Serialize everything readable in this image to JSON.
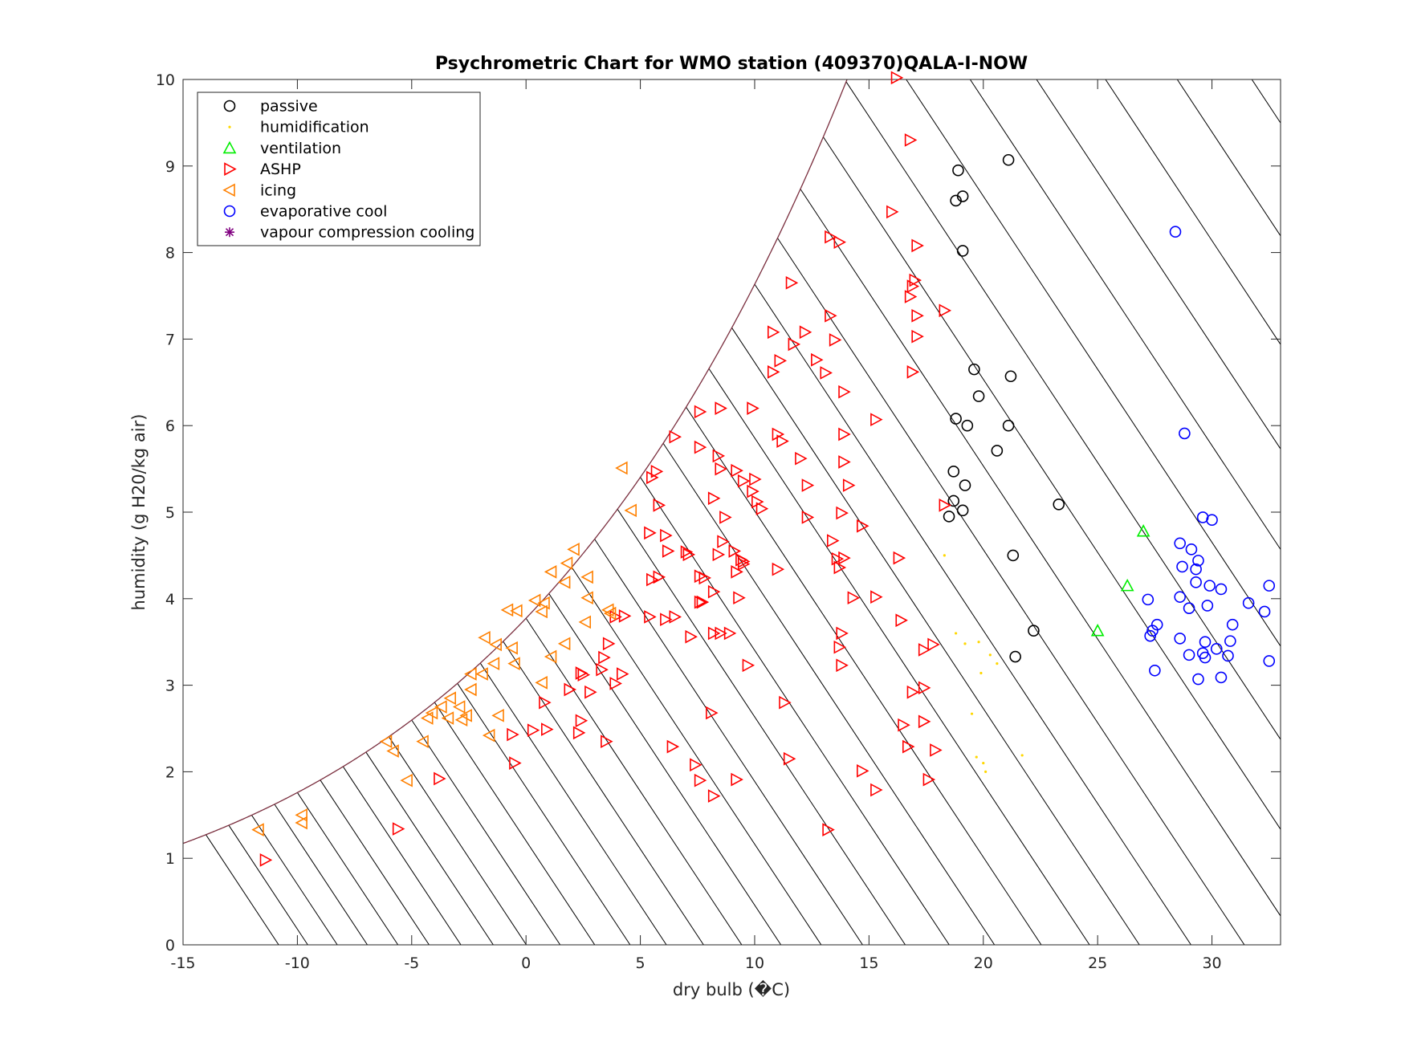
{
  "chart_data": {
    "type": "scatter",
    "title": "Psychrometric Chart for WMO station (409370)QALA-I-NOW",
    "xlabel": "dry bulb (�C)",
    "ylabel": "humidity (g H20/kg air)",
    "xlim": [
      -15,
      33
    ],
    "ylim": [
      0,
      10
    ],
    "xticks": [
      -15,
      -10,
      -5,
      0,
      5,
      10,
      15,
      20,
      25,
      30
    ],
    "yticks": [
      0,
      1,
      2,
      3,
      4,
      5,
      6,
      7,
      8,
      9,
      10
    ],
    "grid": false,
    "legend_position": "top-left",
    "saturation_curve_color": "#7a2e3e",
    "background_line_color": "#000000",
    "series": [
      {
        "name": "passive",
        "marker": "circle",
        "color": "#000000",
        "points": [
          [
            18.9,
            8.95
          ],
          [
            21.1,
            9.07
          ],
          [
            19.1,
            8.65
          ],
          [
            18.8,
            8.6
          ],
          [
            19.1,
            8.02
          ],
          [
            19.6,
            6.65
          ],
          [
            21.2,
            6.57
          ],
          [
            19.8,
            6.34
          ],
          [
            18.8,
            6.08
          ],
          [
            19.3,
            6.0
          ],
          [
            21.1,
            6.0
          ],
          [
            20.6,
            5.71
          ],
          [
            18.7,
            5.47
          ],
          [
            19.2,
            5.31
          ],
          [
            18.7,
            5.13
          ],
          [
            23.3,
            5.09
          ],
          [
            19.1,
            5.02
          ],
          [
            18.5,
            4.95
          ],
          [
            21.3,
            4.5
          ],
          [
            22.2,
            3.63
          ],
          [
            21.4,
            3.33
          ]
        ]
      },
      {
        "name": "humidification",
        "marker": "dot",
        "color": "#ffd700",
        "points": [
          [
            18.3,
            4.5
          ],
          [
            18.8,
            3.6
          ],
          [
            19.2,
            3.48
          ],
          [
            19.8,
            3.5
          ],
          [
            20.3,
            3.35
          ],
          [
            20.6,
            3.25
          ],
          [
            19.9,
            3.14
          ],
          [
            19.5,
            2.67
          ],
          [
            19.7,
            2.17
          ],
          [
            20.0,
            2.1
          ],
          [
            20.1,
            2.0
          ],
          [
            21.7,
            2.19
          ]
        ]
      },
      {
        "name": "ventilation",
        "marker": "triangle-up",
        "color": "#00ee00",
        "points": [
          [
            27.0,
            4.78
          ],
          [
            26.3,
            4.15
          ],
          [
            25.0,
            3.63
          ]
        ]
      },
      {
        "name": "ASHP",
        "marker": "triangle-right",
        "color": "#ff0000",
        "points": [
          [
            16.2,
            10.02
          ],
          [
            16.8,
            9.3
          ],
          [
            16.0,
            8.47
          ],
          [
            13.3,
            8.18
          ],
          [
            13.7,
            8.12
          ],
          [
            17.1,
            8.08
          ],
          [
            11.6,
            7.65
          ],
          [
            17.0,
            7.68
          ],
          [
            16.9,
            7.61
          ],
          [
            16.8,
            7.49
          ],
          [
            18.3,
            7.33
          ],
          [
            13.3,
            7.27
          ],
          [
            17.1,
            7.27
          ],
          [
            10.8,
            7.08
          ],
          [
            12.2,
            7.08
          ],
          [
            13.5,
            6.99
          ],
          [
            17.1,
            7.03
          ],
          [
            11.7,
            6.94
          ],
          [
            11.1,
            6.75
          ],
          [
            12.7,
            6.76
          ],
          [
            10.8,
            6.62
          ],
          [
            13.1,
            6.61
          ],
          [
            16.9,
            6.62
          ],
          [
            13.9,
            6.39
          ],
          [
            8.5,
            6.2
          ],
          [
            9.9,
            6.2
          ],
          [
            7.6,
            6.16
          ],
          [
            15.3,
            6.07
          ],
          [
            11.0,
            5.9
          ],
          [
            13.9,
            5.9
          ],
          [
            6.5,
            5.87
          ],
          [
            11.2,
            5.82
          ],
          [
            7.6,
            5.75
          ],
          [
            8.4,
            5.65
          ],
          [
            12.0,
            5.62
          ],
          [
            13.9,
            5.58
          ],
          [
            8.5,
            5.5
          ],
          [
            9.2,
            5.48
          ],
          [
            5.7,
            5.47
          ],
          [
            5.5,
            5.4
          ],
          [
            9.5,
            5.36
          ],
          [
            10.0,
            5.38
          ],
          [
            14.1,
            5.31
          ],
          [
            12.3,
            5.31
          ],
          [
            9.9,
            5.24
          ],
          [
            10.1,
            5.12
          ],
          [
            8.2,
            5.16
          ],
          [
            5.8,
            5.08
          ],
          [
            10.3,
            5.04
          ],
          [
            18.3,
            5.08
          ],
          [
            13.8,
            4.99
          ],
          [
            8.7,
            4.94
          ],
          [
            12.3,
            4.94
          ],
          [
            14.7,
            4.84
          ],
          [
            5.4,
            4.76
          ],
          [
            6.1,
            4.73
          ],
          [
            13.4,
            4.67
          ],
          [
            8.6,
            4.66
          ],
          [
            6.2,
            4.55
          ],
          [
            9.1,
            4.55
          ],
          [
            7.0,
            4.54
          ],
          [
            7.1,
            4.51
          ],
          [
            8.4,
            4.51
          ],
          [
            9.4,
            4.45
          ],
          [
            9.5,
            4.43
          ],
          [
            16.3,
            4.47
          ],
          [
            13.6,
            4.46
          ],
          [
            13.9,
            4.47
          ],
          [
            9.5,
            4.4
          ],
          [
            13.7,
            4.36
          ],
          [
            9.2,
            4.31
          ],
          [
            11.0,
            4.34
          ],
          [
            7.6,
            4.26
          ],
          [
            7.8,
            4.24
          ],
          [
            5.8,
            4.25
          ],
          [
            5.5,
            4.22
          ],
          [
            8.2,
            4.08
          ],
          [
            7.6,
            3.96
          ],
          [
            7.7,
            3.96
          ],
          [
            9.3,
            4.01
          ],
          [
            14.3,
            4.01
          ],
          [
            15.3,
            4.02
          ],
          [
            3.9,
            3.79
          ],
          [
            4.3,
            3.8
          ],
          [
            5.4,
            3.79
          ],
          [
            6.1,
            3.76
          ],
          [
            6.5,
            3.79
          ],
          [
            16.4,
            3.75
          ],
          [
            13.8,
            3.6
          ],
          [
            7.2,
            3.56
          ],
          [
            8.2,
            3.6
          ],
          [
            8.5,
            3.6
          ],
          [
            8.9,
            3.6
          ],
          [
            13.7,
            3.44
          ],
          [
            17.4,
            3.41
          ],
          [
            17.8,
            3.47
          ],
          [
            3.6,
            3.48
          ],
          [
            3.4,
            3.32
          ],
          [
            3.3,
            3.18
          ],
          [
            13.8,
            3.23
          ],
          [
            9.7,
            3.23
          ],
          [
            4.2,
            3.13
          ],
          [
            2.4,
            3.14
          ],
          [
            2.5,
            3.12
          ],
          [
            3.9,
            3.02
          ],
          [
            1.9,
            2.95
          ],
          [
            2.8,
            2.92
          ],
          [
            17.4,
            2.97
          ],
          [
            16.9,
            2.92
          ],
          [
            0.8,
            2.8
          ],
          [
            11.3,
            2.8
          ],
          [
            8.1,
            2.68
          ],
          [
            2.4,
            2.59
          ],
          [
            17.4,
            2.58
          ],
          [
            16.5,
            2.54
          ],
          [
            0.3,
            2.48
          ],
          [
            0.9,
            2.49
          ],
          [
            2.3,
            2.45
          ],
          [
            -0.6,
            2.43
          ],
          [
            3.5,
            2.35
          ],
          [
            6.4,
            2.29
          ],
          [
            16.7,
            2.29
          ],
          [
            17.9,
            2.25
          ],
          [
            11.5,
            2.15
          ],
          [
            -0.5,
            2.1
          ],
          [
            7.4,
            2.08
          ],
          [
            14.7,
            2.01
          ],
          [
            7.6,
            1.9
          ],
          [
            9.2,
            1.91
          ],
          [
            17.6,
            1.91
          ],
          [
            -3.8,
            1.92
          ],
          [
            15.3,
            1.79
          ],
          [
            8.2,
            1.72
          ],
          [
            -5.6,
            1.34
          ],
          [
            13.2,
            1.33
          ],
          [
            -11.4,
            0.98
          ]
        ]
      },
      {
        "name": "icing",
        "marker": "triangle-left",
        "color": "#ff8000",
        "points": [
          [
            4.2,
            5.51
          ],
          [
            4.6,
            5.02
          ],
          [
            2.1,
            4.57
          ],
          [
            1.8,
            4.41
          ],
          [
            1.1,
            4.31
          ],
          [
            2.7,
            4.25
          ],
          [
            1.7,
            4.19
          ],
          [
            0.8,
            3.95
          ],
          [
            0.4,
            3.98
          ],
          [
            2.7,
            4.01
          ],
          [
            -0.8,
            3.87
          ],
          [
            0.7,
            3.85
          ],
          [
            -0.4,
            3.86
          ],
          [
            3.6,
            3.87
          ],
          [
            3.7,
            3.83
          ],
          [
            2.6,
            3.73
          ],
          [
            -1.8,
            3.55
          ],
          [
            1.7,
            3.48
          ],
          [
            -1.3,
            3.47
          ],
          [
            -0.6,
            3.43
          ],
          [
            1.1,
            3.33
          ],
          [
            -1.4,
            3.25
          ],
          [
            -0.5,
            3.25
          ],
          [
            -2.4,
            3.13
          ],
          [
            -1.9,
            3.13
          ],
          [
            0.7,
            3.03
          ],
          [
            -2.4,
            2.95
          ],
          [
            -3.3,
            2.85
          ],
          [
            -2.9,
            2.75
          ],
          [
            -3.7,
            2.75
          ],
          [
            -4.1,
            2.68
          ],
          [
            -2.6,
            2.65
          ],
          [
            -3.4,
            2.62
          ],
          [
            -1.2,
            2.65
          ],
          [
            -4.3,
            2.62
          ],
          [
            -2.8,
            2.6
          ],
          [
            -1.6,
            2.42
          ],
          [
            -4.5,
            2.35
          ],
          [
            -6.1,
            2.35
          ],
          [
            -5.8,
            2.24
          ],
          [
            -5.2,
            1.9
          ],
          [
            -9.8,
            1.5
          ],
          [
            -9.8,
            1.41
          ],
          [
            -11.7,
            1.33
          ]
        ]
      },
      {
        "name": "evaporative cool",
        "marker": "circle",
        "color": "#0000ff",
        "points": [
          [
            28.4,
            8.24
          ],
          [
            28.8,
            5.91
          ],
          [
            29.6,
            4.94
          ],
          [
            30.0,
            4.91
          ],
          [
            28.6,
            4.64
          ],
          [
            29.1,
            4.57
          ],
          [
            29.4,
            4.44
          ],
          [
            28.7,
            4.37
          ],
          [
            29.3,
            4.34
          ],
          [
            29.3,
            4.19
          ],
          [
            29.9,
            4.15
          ],
          [
            30.4,
            4.11
          ],
          [
            32.5,
            4.15
          ],
          [
            28.6,
            4.02
          ],
          [
            31.6,
            3.95
          ],
          [
            29.0,
            3.89
          ],
          [
            29.8,
            3.92
          ],
          [
            32.3,
            3.85
          ],
          [
            27.2,
            3.99
          ],
          [
            27.6,
            3.7
          ],
          [
            30.9,
            3.7
          ],
          [
            27.4,
            3.63
          ],
          [
            27.3,
            3.57
          ],
          [
            28.6,
            3.54
          ],
          [
            29.7,
            3.5
          ],
          [
            30.8,
            3.51
          ],
          [
            30.2,
            3.42
          ],
          [
            29.0,
            3.35
          ],
          [
            29.6,
            3.37
          ],
          [
            29.7,
            3.32
          ],
          [
            30.7,
            3.34
          ],
          [
            32.5,
            3.28
          ],
          [
            27.5,
            3.17
          ],
          [
            29.4,
            3.07
          ],
          [
            30.4,
            3.09
          ]
        ]
      },
      {
        "name": "vapour compression cooling",
        "marker": "asterisk",
        "color": "#800080",
        "points": []
      }
    ]
  }
}
